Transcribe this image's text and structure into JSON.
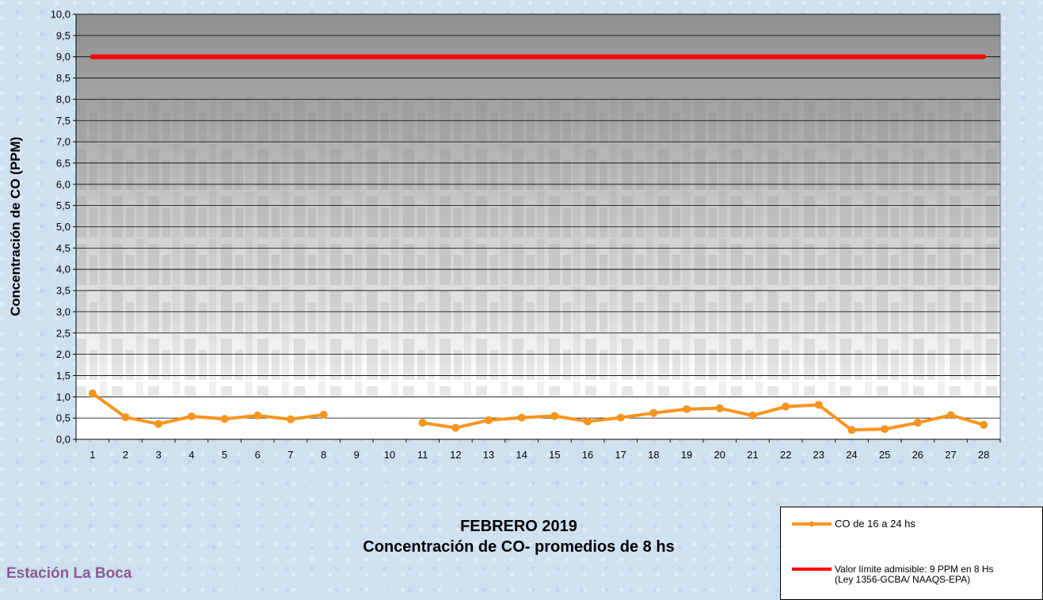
{
  "chart_data": {
    "type": "line",
    "title": "FEBRERO 2019",
    "subtitle": "Concentración de CO- promedios de 8 hs",
    "ylabel": "Concentración de CO (PPM)",
    "xlabel": "",
    "ylim": [
      0,
      10
    ],
    "y_ticks": [
      "0,0",
      "0,5",
      "1,0",
      "1,5",
      "2,0",
      "2,5",
      "3,0",
      "3,5",
      "4,0",
      "4,5",
      "5,0",
      "5,5",
      "6,0",
      "6,5",
      "7,0",
      "7,5",
      "8,0",
      "8,5",
      "9,0",
      "9,5",
      "10,0"
    ],
    "categories": [
      "1",
      "2",
      "3",
      "4",
      "5",
      "6",
      "7",
      "8",
      "9",
      "10",
      "11",
      "12",
      "13",
      "14",
      "15",
      "16",
      "17",
      "18",
      "19",
      "20",
      "21",
      "22",
      "23",
      "24",
      "25",
      "26",
      "27",
      "28"
    ],
    "grid": true,
    "legend_position": "bottom-right",
    "series": [
      {
        "name": "CO de 16 a 24 hs",
        "color": "#f7941d",
        "values": [
          1.08,
          0.52,
          0.36,
          0.54,
          0.48,
          0.56,
          0.47,
          0.58,
          null,
          null,
          0.39,
          0.27,
          0.45,
          0.51,
          0.55,
          0.42,
          0.51,
          0.62,
          0.71,
          0.73,
          0.56,
          0.77,
          0.81,
          0.22,
          0.24,
          0.39,
          0.57,
          0.34
        ]
      },
      {
        "name": "Valor límite admisible: 9 PPM en 8 Hs (Ley 1356-GCBA/ NAAQS-EPA)",
        "color": "#ff0000",
        "values": [
          9,
          9,
          9,
          9,
          9,
          9,
          9,
          9,
          9,
          9,
          9,
          9,
          9,
          9,
          9,
          9,
          9,
          9,
          9,
          9,
          9,
          9,
          9,
          9,
          9,
          9,
          9,
          9
        ]
      }
    ]
  },
  "legend": {
    "co_label": "CO de 16 a 24 hs",
    "limit_label_line1": "Valor límite admisible: 9 PPM en 8 Hs",
    "limit_label_line2": "(Ley 1356-GCBA/ NAAQS-EPA)"
  },
  "station": "Estación La Boca"
}
